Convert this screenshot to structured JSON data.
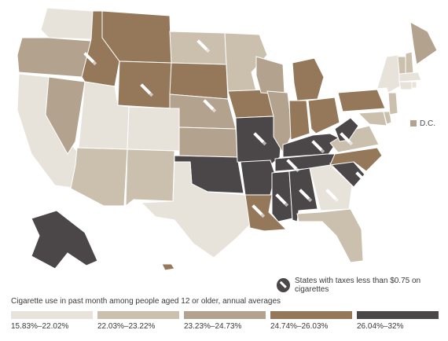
{
  "legend": {
    "title": "Cigarette use in past month among people aged 12 or older, annual averages",
    "items": [
      {
        "label": "15.83%–22.02%",
        "color": "#e8e3da"
      },
      {
        "label": "22.03%–23.22%",
        "color": "#cbbfae"
      },
      {
        "label": "23.23%–24.73%",
        "color": "#b2a28e"
      },
      {
        "label": "24.74%–26.03%",
        "color": "#957859"
      },
      {
        "label": "26.04%–32%",
        "color": "#4b4647"
      }
    ]
  },
  "tax_note": {
    "label": "States with taxes less than $0.75 on cigarettes",
    "icon": "cigarette-icon"
  },
  "dc": {
    "label": "D.C.",
    "tier": 2
  },
  "colors": {
    "border": "#ffffff",
    "background": "#ffffff"
  }
}
